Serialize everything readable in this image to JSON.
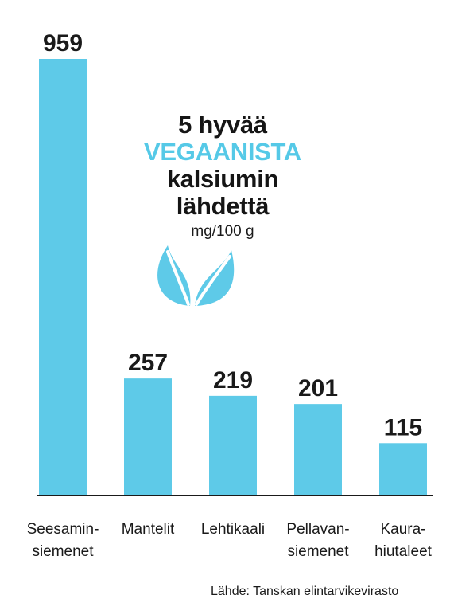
{
  "chart_data": {
    "type": "bar",
    "categories": [
      [
        "Seesamin-",
        "siemenet"
      ],
      [
        "Mantelit"
      ],
      [
        "Lehtikaali"
      ],
      [
        "Pellavan-",
        "siemenet"
      ],
      [
        "Kaura-",
        "hiutaleet"
      ]
    ],
    "values": [
      959,
      257,
      219,
      201,
      115
    ],
    "value_labels": [
      "959",
      "257",
      "219",
      "201",
      "115"
    ],
    "bar_color": "#5ecae8",
    "axis_color": "#1a1a1a",
    "grid": false,
    "title": {
      "line1": "5 hyvää",
      "line2": "VEGAANISTA",
      "line3": "kalsiumin",
      "line4": "lähdettä"
    },
    "unit": "mg/100 g"
  },
  "source": "Lähde: Tanskan elintarvikevirasto",
  "icons": {
    "leaf": "leaf-icon",
    "leaf_color": "#5ecae8"
  }
}
